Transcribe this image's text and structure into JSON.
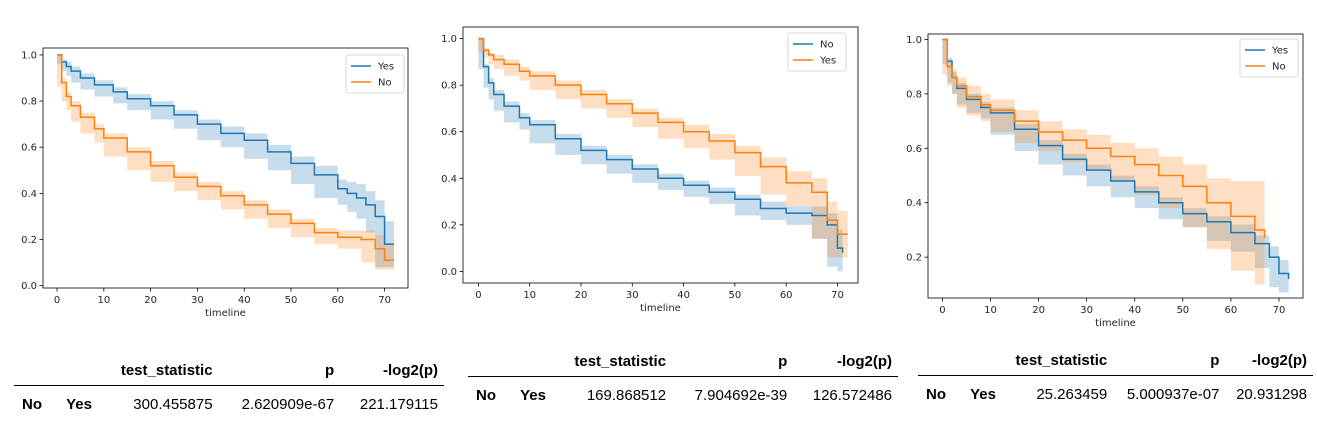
{
  "chart_data": [
    {
      "type": "line",
      "xlabel": "timeline",
      "xlim": [
        -3,
        75
      ],
      "ylim": [
        -0.01,
        1.03
      ],
      "xticks": [
        "0",
        "10",
        "20",
        "30",
        "40",
        "50",
        "60",
        "70"
      ],
      "yticks": [
        "0.0",
        "0.2",
        "0.4",
        "0.6",
        "0.8",
        "1.0"
      ],
      "legend_position": "top-right",
      "series": [
        {
          "name": "Yes",
          "color": "#1f77b4",
          "x": [
            0,
            1,
            2,
            3,
            5,
            8,
            12,
            15,
            20,
            25,
            30,
            35,
            40,
            45,
            50,
            55,
            60,
            62,
            64,
            66,
            68,
            70,
            72
          ],
          "y": [
            1.0,
            0.97,
            0.95,
            0.93,
            0.9,
            0.87,
            0.84,
            0.81,
            0.78,
            0.74,
            0.7,
            0.66,
            0.63,
            0.58,
            0.53,
            0.48,
            0.42,
            0.4,
            0.38,
            0.35,
            0.3,
            0.18,
            0.18
          ],
          "ci_upper": [
            1.0,
            0.98,
            0.97,
            0.95,
            0.92,
            0.89,
            0.86,
            0.83,
            0.8,
            0.76,
            0.72,
            0.69,
            0.66,
            0.61,
            0.56,
            0.52,
            0.46,
            0.45,
            0.44,
            0.41,
            0.37,
            0.28,
            0.28
          ],
          "ci_lower": [
            1.0,
            0.96,
            0.93,
            0.91,
            0.88,
            0.85,
            0.82,
            0.79,
            0.76,
            0.72,
            0.68,
            0.63,
            0.6,
            0.55,
            0.5,
            0.44,
            0.38,
            0.35,
            0.32,
            0.29,
            0.23,
            0.08,
            0.08
          ]
        },
        {
          "name": "No",
          "color": "#ff7f0e",
          "x": [
            0,
            1,
            2,
            3,
            5,
            8,
            10,
            15,
            20,
            25,
            30,
            35,
            40,
            45,
            50,
            55,
            60,
            65,
            68,
            70,
            72
          ],
          "y": [
            1.0,
            0.88,
            0.82,
            0.78,
            0.73,
            0.68,
            0.64,
            0.58,
            0.52,
            0.47,
            0.43,
            0.39,
            0.35,
            0.31,
            0.27,
            0.23,
            0.21,
            0.2,
            0.16,
            0.11,
            0.11
          ],
          "ci_upper": [
            1.0,
            0.9,
            0.84,
            0.8,
            0.75,
            0.7,
            0.66,
            0.6,
            0.54,
            0.49,
            0.45,
            0.41,
            0.37,
            0.33,
            0.29,
            0.25,
            0.24,
            0.24,
            0.22,
            0.18,
            0.18
          ],
          "ci_lower": [
            1.0,
            0.86,
            0.8,
            0.76,
            0.71,
            0.66,
            0.62,
            0.56,
            0.5,
            0.45,
            0.41,
            0.37,
            0.33,
            0.29,
            0.25,
            0.21,
            0.18,
            0.16,
            0.1,
            0.07,
            0.07
          ]
        }
      ]
    },
    {
      "type": "line",
      "xlabel": "timeline",
      "xlim": [
        -3,
        74
      ],
      "ylim": [
        -0.05,
        1.05
      ],
      "xticks": [
        "0",
        "10",
        "20",
        "30",
        "40",
        "50",
        "60",
        "70"
      ],
      "yticks": [
        "0.0",
        "0.2",
        "0.4",
        "0.6",
        "0.8",
        "1.0"
      ],
      "legend_position": "top-right",
      "series": [
        {
          "name": "No",
          "color": "#1f77b4",
          "x": [
            0,
            1,
            2,
            3,
            5,
            8,
            10,
            15,
            20,
            25,
            30,
            35,
            40,
            45,
            50,
            55,
            60,
            65,
            68,
            70,
            71
          ],
          "y": [
            1.0,
            0.88,
            0.81,
            0.76,
            0.71,
            0.66,
            0.63,
            0.57,
            0.52,
            0.48,
            0.44,
            0.4,
            0.37,
            0.34,
            0.31,
            0.27,
            0.25,
            0.24,
            0.2,
            0.1,
            0.08
          ],
          "ci_upper": [
            1.0,
            0.89,
            0.83,
            0.78,
            0.73,
            0.68,
            0.65,
            0.59,
            0.54,
            0.5,
            0.46,
            0.42,
            0.39,
            0.36,
            0.33,
            0.3,
            0.28,
            0.28,
            0.25,
            0.18,
            0.18
          ],
          "ci_lower": [
            1.0,
            0.87,
            0.79,
            0.74,
            0.69,
            0.64,
            0.61,
            0.55,
            0.5,
            0.46,
            0.42,
            0.38,
            0.35,
            0.32,
            0.29,
            0.24,
            0.22,
            0.2,
            0.14,
            0.02,
            0.0
          ]
        },
        {
          "name": "Yes",
          "color": "#ff7f0e",
          "x": [
            0,
            1,
            2,
            3,
            5,
            8,
            10,
            15,
            20,
            25,
            30,
            35,
            40,
            45,
            50,
            55,
            60,
            65,
            68,
            70,
            72
          ],
          "y": [
            1.0,
            0.95,
            0.93,
            0.91,
            0.89,
            0.86,
            0.84,
            0.8,
            0.76,
            0.72,
            0.68,
            0.64,
            0.6,
            0.56,
            0.51,
            0.45,
            0.38,
            0.34,
            0.22,
            0.16,
            0.16
          ],
          "ci_upper": [
            1.0,
            0.96,
            0.94,
            0.93,
            0.91,
            0.88,
            0.86,
            0.82,
            0.78,
            0.74,
            0.7,
            0.66,
            0.63,
            0.59,
            0.54,
            0.49,
            0.43,
            0.4,
            0.3,
            0.26,
            0.26
          ],
          "ci_lower": [
            1.0,
            0.94,
            0.92,
            0.89,
            0.87,
            0.84,
            0.82,
            0.78,
            0.74,
            0.7,
            0.66,
            0.62,
            0.57,
            0.53,
            0.48,
            0.41,
            0.33,
            0.28,
            0.14,
            0.06,
            0.06
          ]
        }
      ]
    },
    {
      "type": "line",
      "xlabel": "timeline",
      "xlim": [
        -3,
        75
      ],
      "ylim": [
        0.05,
        1.02
      ],
      "xticks": [
        "0",
        "10",
        "20",
        "30",
        "40",
        "50",
        "60",
        "70"
      ],
      "yticks": [
        "0.2",
        "0.4",
        "0.6",
        "0.8",
        "1.0"
      ],
      "legend_position": "top-right",
      "series": [
        {
          "name": "Yes",
          "color": "#1f77b4",
          "x": [
            0,
            1,
            2,
            3,
            5,
            8,
            10,
            15,
            20,
            25,
            30,
            35,
            40,
            45,
            50,
            55,
            60,
            65,
            68,
            70,
            72
          ],
          "y": [
            1.0,
            0.92,
            0.86,
            0.82,
            0.78,
            0.75,
            0.73,
            0.67,
            0.61,
            0.56,
            0.52,
            0.48,
            0.44,
            0.4,
            0.36,
            0.33,
            0.29,
            0.25,
            0.2,
            0.14,
            0.12
          ],
          "ci_upper": [
            1.0,
            0.93,
            0.88,
            0.84,
            0.8,
            0.77,
            0.75,
            0.69,
            0.63,
            0.58,
            0.54,
            0.5,
            0.46,
            0.42,
            0.38,
            0.35,
            0.32,
            0.28,
            0.24,
            0.19,
            0.18
          ],
          "ci_lower": [
            1.0,
            0.91,
            0.84,
            0.8,
            0.76,
            0.73,
            0.71,
            0.65,
            0.59,
            0.54,
            0.5,
            0.46,
            0.42,
            0.38,
            0.34,
            0.31,
            0.26,
            0.22,
            0.16,
            0.09,
            0.07
          ]
        },
        {
          "name": "No",
          "color": "#ff7f0e",
          "x": [
            0,
            1,
            2,
            3,
            5,
            8,
            10,
            15,
            20,
            25,
            30,
            35,
            40,
            45,
            50,
            55,
            60,
            65,
            67
          ],
          "y": [
            1.0,
            0.9,
            0.86,
            0.83,
            0.79,
            0.76,
            0.74,
            0.7,
            0.66,
            0.63,
            0.6,
            0.57,
            0.54,
            0.5,
            0.46,
            0.4,
            0.35,
            0.3,
            0.27
          ],
          "ci_upper": [
            1.0,
            0.93,
            0.89,
            0.86,
            0.83,
            0.8,
            0.78,
            0.74,
            0.7,
            0.67,
            0.65,
            0.62,
            0.6,
            0.57,
            0.54,
            0.49,
            0.48,
            0.48,
            0.48
          ],
          "ci_lower": [
            1.0,
            0.87,
            0.83,
            0.8,
            0.75,
            0.72,
            0.7,
            0.66,
            0.62,
            0.59,
            0.55,
            0.52,
            0.48,
            0.43,
            0.38,
            0.31,
            0.23,
            0.15,
            0.1
          ]
        }
      ]
    }
  ],
  "tables": [
    {
      "headers": [
        "test_statistic",
        "p",
        "-log2(p)"
      ],
      "row_index": [
        "No",
        "Yes"
      ],
      "values": [
        "300.455875",
        "2.620909e-67",
        "221.179115"
      ]
    },
    {
      "headers": [
        "test_statistic",
        "p",
        "-log2(p)"
      ],
      "row_index": [
        "No",
        "Yes"
      ],
      "values": [
        "169.868512",
        "7.904692e-39",
        "126.572486"
      ]
    },
    {
      "headers": [
        "test_statistic",
        "p",
        "-log2(p)"
      ],
      "row_index": [
        "No",
        "Yes"
      ],
      "values": [
        "25.263459",
        "5.000937e-07",
        "20.931298"
      ]
    }
  ]
}
